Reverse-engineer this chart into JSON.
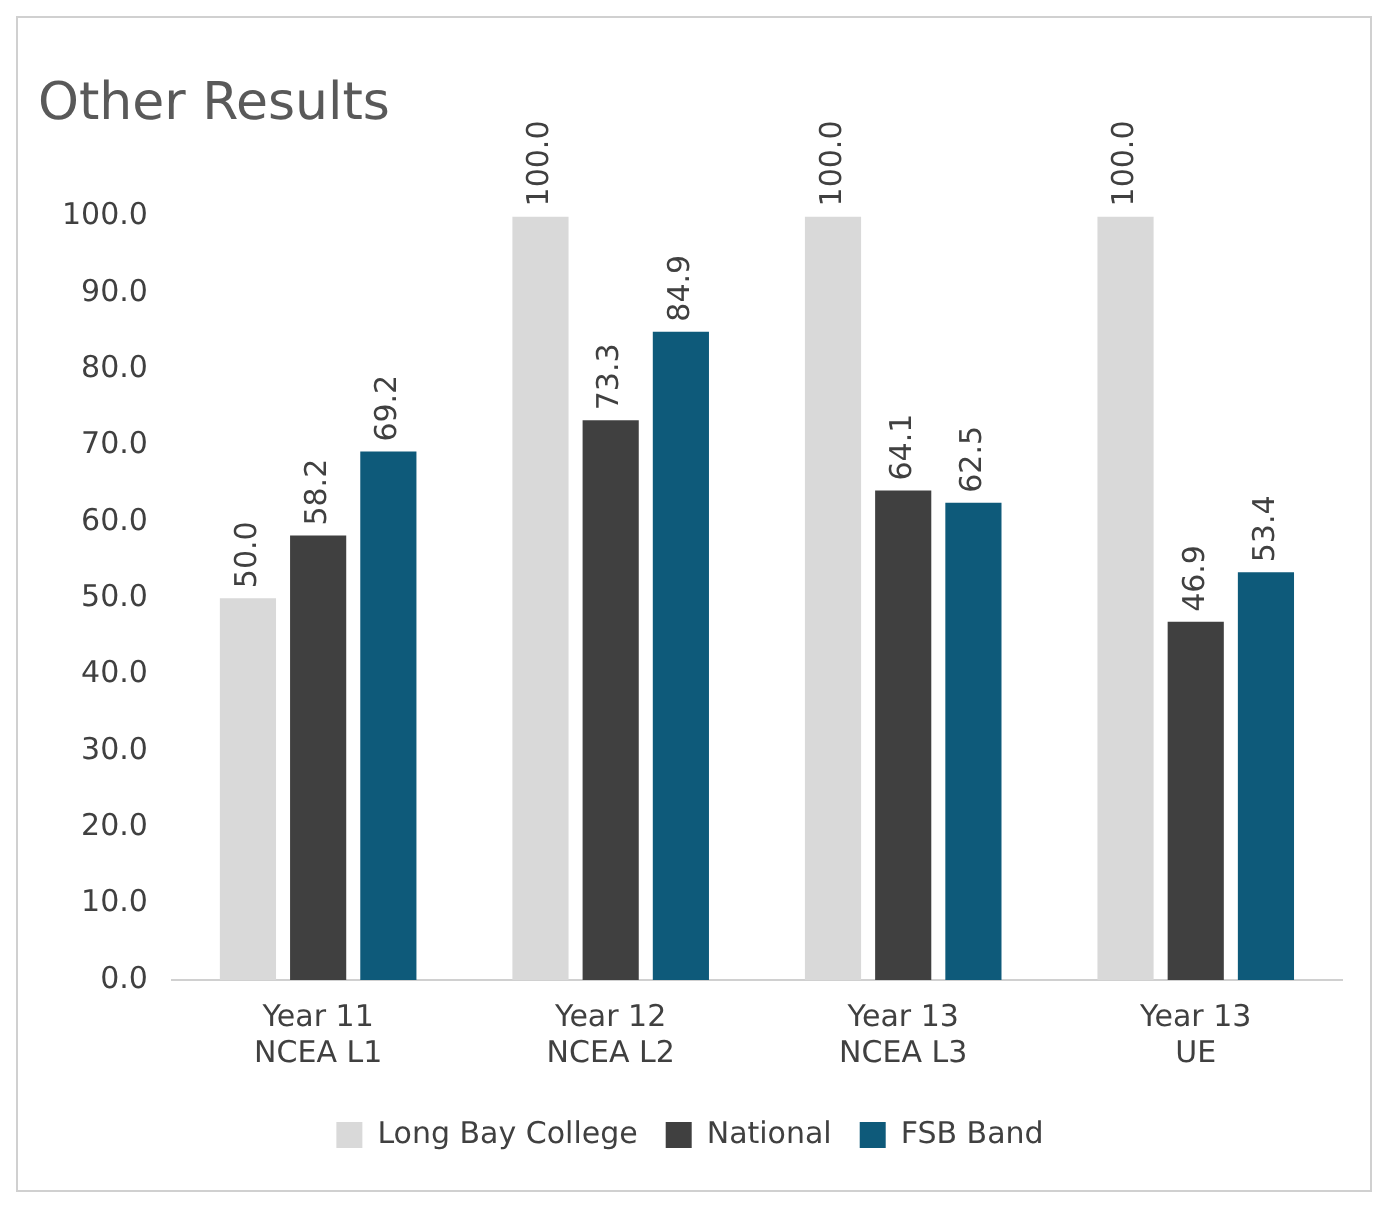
{
  "chart_data": {
    "type": "bar",
    "title": "Other Results",
    "categories": [
      "Year 11\nNCEA L1",
      "Year 12\nNCEA L2",
      "Year 13\nNCEA L3",
      "Year 13\nUE"
    ],
    "series": [
      {
        "name": "Long Bay College",
        "color": "#d9d9d9",
        "values": [
          50.0,
          100.0,
          100.0,
          100.0
        ],
        "value_labels": [
          "50.0",
          "100.0",
          "100.0",
          "100.0"
        ]
      },
      {
        "name": "National",
        "color": "#404040",
        "values": [
          58.2,
          73.3,
          64.1,
          46.9
        ],
        "value_labels": [
          "58.2",
          "73.3",
          "64.1",
          "46.9"
        ]
      },
      {
        "name": "FSB Band",
        "color": "#0e5a7a",
        "values": [
          69.2,
          84.9,
          62.5,
          53.4
        ],
        "value_labels": [
          "69.2",
          "84.9",
          "62.5",
          "53.4"
        ]
      }
    ],
    "ylim": [
      0,
      100
    ],
    "yticks": [
      {
        "value": 0,
        "label": "0.0"
      },
      {
        "value": 10,
        "label": "10.0"
      },
      {
        "value": 20,
        "label": "20.0"
      },
      {
        "value": 30,
        "label": "30.0"
      },
      {
        "value": 40,
        "label": "40.0"
      },
      {
        "value": 50,
        "label": "50.0"
      },
      {
        "value": 60,
        "label": "60.0"
      },
      {
        "value": 70,
        "label": "70.0"
      },
      {
        "value": 80,
        "label": "80.0"
      },
      {
        "value": 90,
        "label": "90.0"
      },
      {
        "value": 100,
        "label": "100.0"
      }
    ],
    "grid": false,
    "legend": "bottom"
  }
}
